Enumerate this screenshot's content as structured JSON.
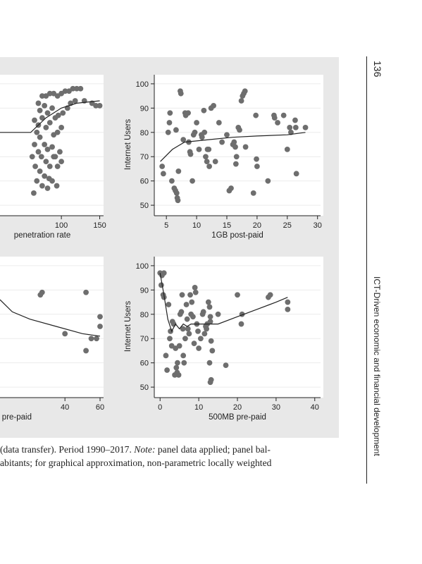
{
  "caption": {
    "line1_pre": "(data transfer). Period 1990–2017. ",
    "line1_note": "Note:",
    "line1_post": " panel data applied; panel bal-",
    "line2": "abitants; for graphical approximation, non-parametric locally weighted"
  },
  "page_number": "136",
  "running_head": "ICT-Driven economic and financial development",
  "chart_data": [
    {
      "type": "scatter",
      "xlabel": "penetration rate",
      "ylabel": "",
      "xticks": [
        "100",
        "150"
      ],
      "xlim": [
        20,
        155
      ],
      "ylim": [
        48,
        102
      ],
      "points": [
        [
          75,
          95
        ],
        [
          80,
          95
        ],
        [
          85,
          96
        ],
        [
          90,
          96
        ],
        [
          95,
          95
        ],
        [
          100,
          96
        ],
        [
          105,
          97
        ],
        [
          110,
          97
        ],
        [
          115,
          98
        ],
        [
          120,
          98
        ],
        [
          125,
          98
        ],
        [
          130,
          93
        ],
        [
          140,
          92
        ],
        [
          145,
          91
        ],
        [
          150,
          91
        ],
        [
          70,
          92
        ],
        [
          72,
          89
        ],
        [
          78,
          91
        ],
        [
          82,
          88
        ],
        [
          88,
          90
        ],
        [
          92,
          86
        ],
        [
          96,
          87
        ],
        [
          102,
          88
        ],
        [
          108,
          90
        ],
        [
          112,
          92
        ],
        [
          118,
          93
        ],
        [
          65,
          85
        ],
        [
          70,
          83
        ],
        [
          75,
          86
        ],
        [
          80,
          82
        ],
        [
          85,
          84
        ],
        [
          90,
          79
        ],
        [
          95,
          80
        ],
        [
          100,
          82
        ],
        [
          68,
          80
        ],
        [
          72,
          78
        ],
        [
          78,
          75
        ],
        [
          82,
          73
        ],
        [
          88,
          74
        ],
        [
          92,
          70
        ],
        [
          98,
          72
        ],
        [
          65,
          75
        ],
        [
          70,
          72
        ],
        [
          74,
          70
        ],
        [
          80,
          68
        ],
        [
          85,
          66
        ],
        [
          90,
          70
        ],
        [
          95,
          66
        ],
        [
          100,
          68
        ],
        [
          62,
          70
        ],
        [
          66,
          66
        ],
        [
          72,
          64
        ],
        [
          78,
          62
        ],
        [
          84,
          61
        ],
        [
          88,
          60
        ],
        [
          94,
          58
        ],
        [
          68,
          60
        ],
        [
          75,
          58
        ],
        [
          82,
          57
        ],
        [
          64,
          55
        ]
      ],
      "trend": [
        [
          20,
          80
        ],
        [
          60,
          80
        ],
        [
          80,
          86
        ],
        [
          100,
          90
        ],
        [
          120,
          92
        ],
        [
          150,
          93
        ]
      ]
    },
    {
      "type": "scatter",
      "xlabel": "1GB post-paid",
      "ylabel": "Internet Users",
      "xticks": [
        "5",
        "10",
        "15",
        "20",
        "25",
        "30"
      ],
      "yticks": [
        "50",
        "60",
        "70",
        "80",
        "90",
        "100"
      ],
      "xlim": [
        3,
        30.5
      ],
      "ylim": [
        48,
        102
      ],
      "points": [
        [
          4.3,
          66
        ],
        [
          4.5,
          63
        ],
        [
          5.3,
          80
        ],
        [
          5.5,
          84
        ],
        [
          5.6,
          88
        ],
        [
          5.9,
          60
        ],
        [
          6.3,
          57
        ],
        [
          6.5,
          56
        ],
        [
          6.7,
          55
        ],
        [
          6.8,
          53
        ],
        [
          6.9,
          52
        ],
        [
          7.0,
          64
        ],
        [
          6.6,
          81
        ],
        [
          7.3,
          97
        ],
        [
          7.4,
          96
        ],
        [
          7.8,
          77
        ],
        [
          8.1,
          88
        ],
        [
          8.2,
          87
        ],
        [
          8.6,
          88
        ],
        [
          8.7,
          76
        ],
        [
          8.9,
          72
        ],
        [
          9.0,
          71
        ],
        [
          9.3,
          60
        ],
        [
          9.5,
          79
        ],
        [
          9.7,
          80
        ],
        [
          10.0,
          84
        ],
        [
          10.4,
          73
        ],
        [
          10.8,
          79
        ],
        [
          10.9,
          78
        ],
        [
          11.2,
          89
        ],
        [
          11.3,
          80
        ],
        [
          11.5,
          70
        ],
        [
          11.7,
          68
        ],
        [
          11.8,
          73
        ],
        [
          12.0,
          73
        ],
        [
          12.1,
          66
        ],
        [
          12.4,
          90
        ],
        [
          12.8,
          91
        ],
        [
          13.1,
          68
        ],
        [
          13.7,
          84
        ],
        [
          14.2,
          76
        ],
        [
          15.0,
          79
        ],
        [
          15.4,
          56
        ],
        [
          15.7,
          57
        ],
        [
          16.0,
          75
        ],
        [
          16.2,
          76
        ],
        [
          16.4,
          74
        ],
        [
          16.5,
          67
        ],
        [
          16.6,
          70
        ],
        [
          16.9,
          82
        ],
        [
          17.1,
          81
        ],
        [
          17.4,
          93
        ],
        [
          17.6,
          95
        ],
        [
          17.8,
          96
        ],
        [
          18.0,
          97
        ],
        [
          18.1,
          74
        ],
        [
          19.4,
          55
        ],
        [
          19.8,
          87
        ],
        [
          19.9,
          69
        ],
        [
          20.0,
          66
        ],
        [
          21.8,
          60
        ],
        [
          22.8,
          87
        ],
        [
          22.9,
          86
        ],
        [
          23.4,
          84
        ],
        [
          24.4,
          87
        ],
        [
          25.0,
          73
        ],
        [
          25.4,
          82
        ],
        [
          25.6,
          80
        ],
        [
          26.3,
          85
        ],
        [
          26.4,
          82
        ],
        [
          26.5,
          63
        ],
        [
          28.0,
          82
        ]
      ],
      "trend": [
        [
          4,
          68
        ],
        [
          6,
          73
        ],
        [
          8,
          76
        ],
        [
          12,
          77
        ],
        [
          16,
          78
        ],
        [
          20,
          78.5
        ],
        [
          25,
          79
        ],
        [
          28,
          80
        ]
      ]
    },
    {
      "type": "scatter",
      "xlabel": "GB pre-paid",
      "ylabel": "",
      "xticks": [
        "40",
        "60"
      ],
      "xlim": [
        3,
        62
      ],
      "ylim": [
        48,
        102
      ],
      "points": [
        [
          26,
          88
        ],
        [
          27,
          89
        ],
        [
          52,
          89
        ],
        [
          60,
          79
        ],
        [
          60,
          75
        ],
        [
          40,
          72
        ],
        [
          55,
          70
        ],
        [
          58,
          70
        ],
        [
          52,
          65
        ]
      ],
      "trend": [
        [
          3,
          86
        ],
        [
          10,
          81
        ],
        [
          20,
          78
        ],
        [
          35,
          75
        ],
        [
          50,
          72
        ],
        [
          60,
          71
        ]
      ]
    },
    {
      "type": "scatter",
      "xlabel": "500MB pre-paid",
      "ylabel": "Internet Users",
      "xticks": [
        "0",
        "10",
        "20",
        "30",
        "40"
      ],
      "yticks": [
        "50",
        "60",
        "70",
        "80",
        "90",
        "100"
      ],
      "xlim": [
        -1.5,
        41.5
      ],
      "ylim": [
        48,
        102
      ],
      "points": [
        [
          0,
          97
        ],
        [
          0.5,
          96
        ],
        [
          1,
          97
        ],
        [
          0.3,
          92
        ],
        [
          0.8,
          88
        ],
        [
          1,
          87
        ],
        [
          1.5,
          63
        ],
        [
          1.8,
          57
        ],
        [
          2.2,
          84
        ],
        [
          2.5,
          70
        ],
        [
          2.7,
          73
        ],
        [
          3,
          67
        ],
        [
          3.2,
          77
        ],
        [
          3.5,
          76
        ],
        [
          3.8,
          55
        ],
        [
          4,
          66
        ],
        [
          4.2,
          58
        ],
        [
          4.4,
          56
        ],
        [
          4.5,
          60
        ],
        [
          4.8,
          55
        ],
        [
          5,
          67
        ],
        [
          5.2,
          80
        ],
        [
          5.5,
          81
        ],
        [
          5.7,
          88
        ],
        [
          5.9,
          74
        ],
        [
          6,
          63
        ],
        [
          6.2,
          60
        ],
        [
          6.5,
          70
        ],
        [
          6.8,
          84
        ],
        [
          7,
          78
        ],
        [
          7.2,
          74
        ],
        [
          7.5,
          72
        ],
        [
          7.8,
          88
        ],
        [
          8,
          80
        ],
        [
          8.2,
          85
        ],
        [
          8.5,
          79
        ],
        [
          8.8,
          68
        ],
        [
          9,
          91
        ],
        [
          9.2,
          89
        ],
        [
          9.5,
          76
        ],
        [
          9.8,
          73
        ],
        [
          10,
          66
        ],
        [
          10.5,
          70
        ],
        [
          11,
          80
        ],
        [
          11.2,
          81
        ],
        [
          11.5,
          72
        ],
        [
          11.8,
          75
        ],
        [
          12,
          74
        ],
        [
          12.2,
          76
        ],
        [
          12.5,
          85
        ],
        [
          12.8,
          83
        ],
        [
          13,
          79
        ],
        [
          13,
          77
        ],
        [
          13.2,
          69
        ],
        [
          13.5,
          65
        ],
        [
          12.8,
          60
        ],
        [
          13,
          52
        ],
        [
          13.2,
          53
        ],
        [
          15,
          80
        ],
        [
          17,
          59
        ],
        [
          20,
          88
        ],
        [
          21,
          76
        ],
        [
          21.2,
          80
        ],
        [
          28,
          87
        ],
        [
          28.5,
          88
        ],
        [
          33,
          85
        ],
        [
          33,
          82
        ]
      ],
      "trend": [
        [
          0,
          97
        ],
        [
          1,
          88
        ],
        [
          2,
          78
        ],
        [
          3,
          73
        ],
        [
          4,
          76
        ],
        [
          5,
          74
        ],
        [
          6,
          76
        ],
        [
          7,
          75
        ],
        [
          8,
          76
        ],
        [
          10,
          76
        ],
        [
          15,
          76
        ],
        [
          20,
          79
        ],
        [
          25,
          82
        ],
        [
          30,
          85
        ],
        [
          33,
          87
        ]
      ]
    }
  ]
}
